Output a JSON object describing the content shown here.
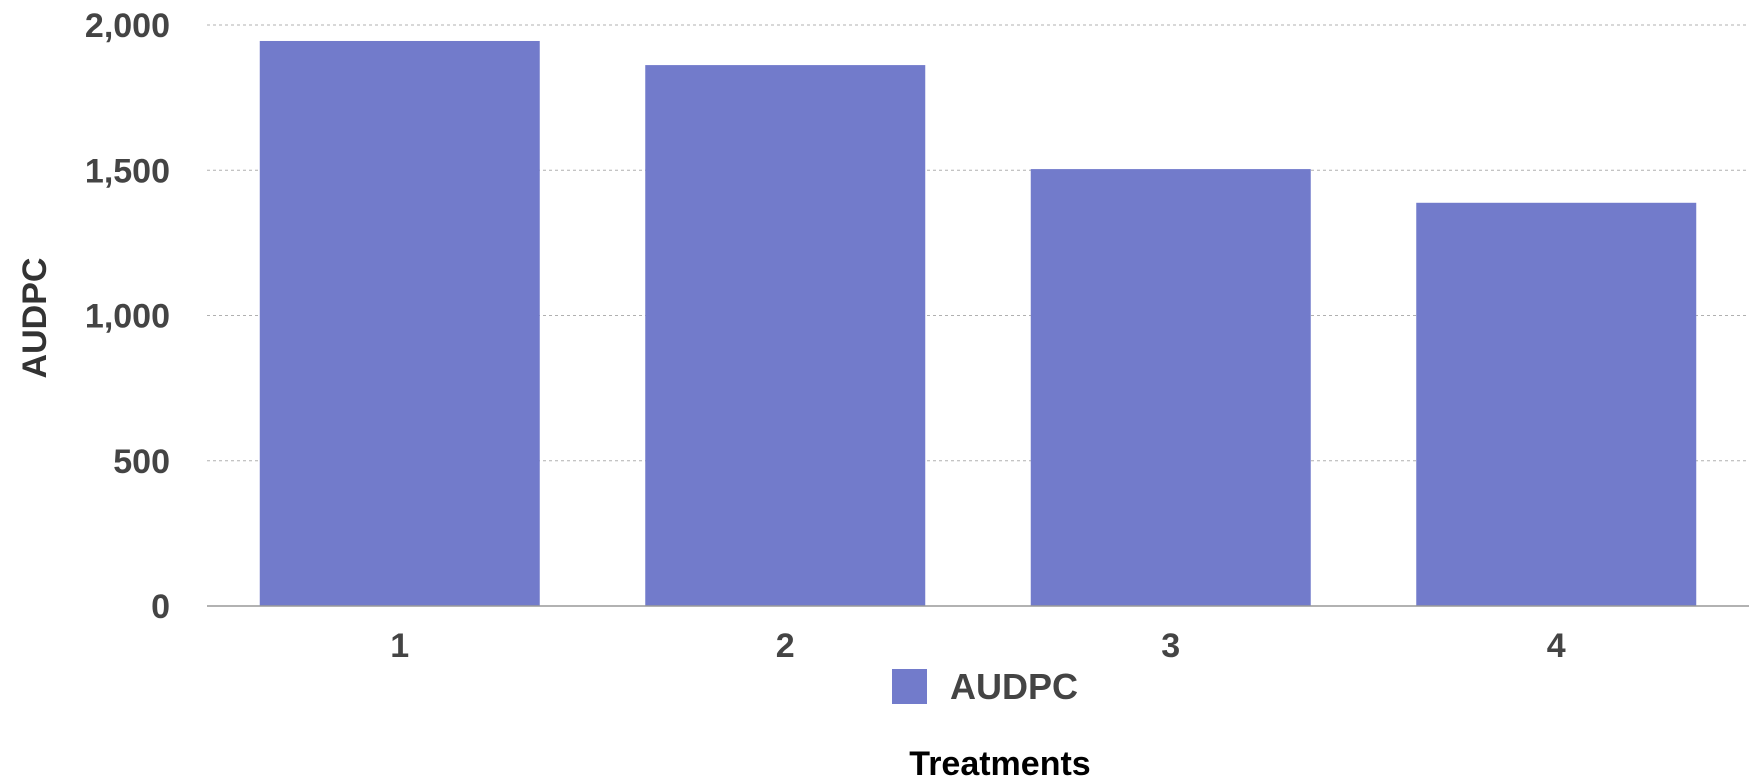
{
  "chart_data": {
    "type": "bar",
    "categories": [
      "1",
      "2",
      "3",
      "4"
    ],
    "series": [
      {
        "name": "AUDPC",
        "values": [
          1945,
          1862,
          1504,
          1388
        ]
      }
    ],
    "xlabel": "Treatments",
    "ylabel": "AUDPC",
    "ylim": [
      0,
      2000
    ],
    "yticks": [
      0,
      500,
      1000,
      1500,
      2000
    ],
    "ytick_labels": [
      "0",
      "500",
      "1,000",
      "1,500",
      "2,000"
    ],
    "grid": true,
    "legend": {
      "position": "bottom",
      "entries": [
        "AUDPC"
      ]
    },
    "colors": {
      "bar": "#727bcb",
      "grid": "#b0b0b0",
      "axis": "#999999"
    }
  }
}
